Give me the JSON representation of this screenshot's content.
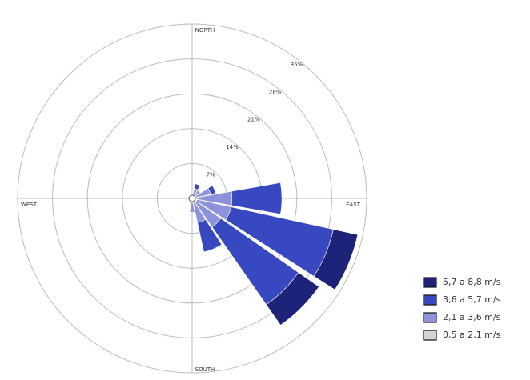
{
  "chart_data": {
    "type": "windrose",
    "categories": [
      "NORTH",
      null,
      null,
      null,
      "EAST",
      null,
      null,
      null,
      "SOUTH",
      null,
      null,
      null,
      "WEST",
      null,
      null,
      null
    ],
    "ylim": [
      0,
      35
    ],
    "yticks": [
      {
        "value": 7,
        "label": "7%"
      },
      {
        "value": 14,
        "label": "14%"
      },
      {
        "value": 21,
        "label": "21%"
      },
      {
        "value": 28,
        "label": "28%"
      },
      {
        "value": 35,
        "label": "35%"
      }
    ],
    "grid": true,
    "legend": "right",
    "series": [
      {
        "name": "5,7 a 8,8 m/s",
        "color": "#1e237a",
        "values": [
          0,
          0,
          0,
          0,
          0,
          5,
          5,
          0,
          0,
          0,
          0,
          0,
          0,
          0,
          0,
          0
        ]
      },
      {
        "name": "3,6 a 5,7 m/s",
        "color": "#3848c0",
        "values": [
          0,
          1,
          0,
          1,
          10,
          21,
          19,
          6,
          0,
          0,
          0,
          0,
          0,
          0,
          0,
          0
        ]
      },
      {
        "name": "2,1 a 3,6 m/s",
        "color": "#8c93dc",
        "values": [
          0.2,
          1.5,
          1.5,
          3,
          7,
          7,
          6,
          4,
          2,
          0.5,
          0.2,
          0,
          0,
          0,
          0,
          0.2
        ]
      },
      {
        "name": "0,5 a 2,1 m/s",
        "color": "#d4d4d4",
        "values": [
          0.3,
          0.5,
          0.5,
          0.8,
          1,
          1,
          1,
          1,
          0.8,
          0.5,
          0.3,
          0.3,
          0.3,
          0.3,
          0.3,
          0.3
        ]
      }
    ]
  }
}
